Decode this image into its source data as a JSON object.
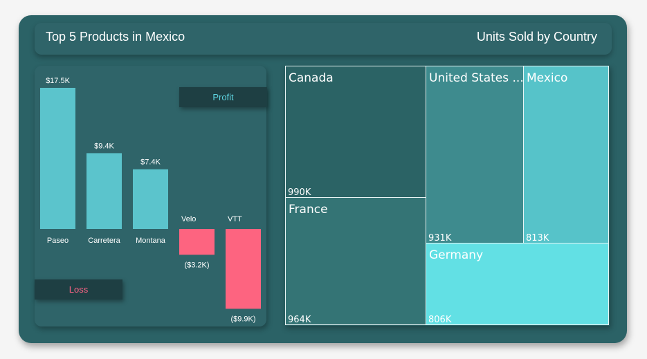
{
  "header": {
    "left_title": "Top 5 Products in Mexico",
    "right_title": "Units Sold by Country"
  },
  "legend": {
    "profit_label": "Profit",
    "loss_label": "Loss",
    "profit_color": "#5ed4e0",
    "loss_color": "#ff6486"
  },
  "colors": {
    "bar_positive": "#5bc4cc",
    "bar_negative": "#fd6480",
    "card_bg": "#2b6266"
  },
  "chart_data": [
    {
      "type": "bar",
      "title": "Top 5 Products in Mexico",
      "categories": [
        "Paseo",
        "Carretera",
        "Montana",
        "Velo",
        "VTT"
      ],
      "values": [
        17.5,
        9.4,
        7.4,
        -3.2,
        -9.9
      ],
      "value_labels": [
        "$17.5K",
        "$9.4K",
        "$7.4K",
        "($3.2K)",
        "($9.9K)"
      ],
      "units": "$K",
      "legend": [
        "Profit",
        "Loss"
      ]
    },
    {
      "type": "treemap",
      "title": "Units Sold by Country",
      "categories": [
        "Canada",
        "France",
        "United States ...",
        "Mexico",
        "Germany"
      ],
      "values": [
        990,
        964,
        931,
        813,
        806
      ],
      "value_labels": [
        "990K",
        "964K",
        "931K",
        "813K",
        "806K"
      ],
      "colors": [
        "#2b6365",
        "#347475",
        "#3e8b8e",
        "#56c3c9",
        "#62e0e4"
      ]
    }
  ]
}
